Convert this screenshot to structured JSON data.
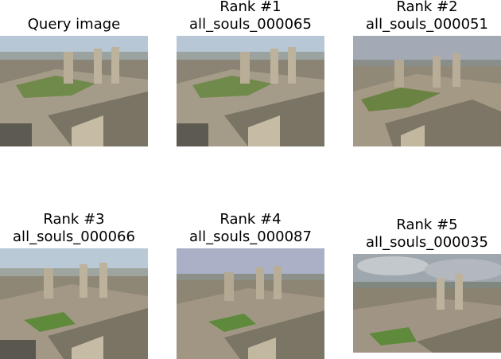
{
  "panels": [
    {
      "line1": "Query image",
      "line2": ""
    },
    {
      "line1": "Rank #1",
      "line2": "all_souls_000065"
    },
    {
      "line1": "Rank #2",
      "line2": "all_souls_000051"
    },
    {
      "line1": "Rank #3",
      "line2": "all_souls_000066"
    },
    {
      "line1": "Rank #4",
      "line2": "all_souls_000087"
    },
    {
      "line1": "Rank #5",
      "line2": "all_souls_000035"
    }
  ]
}
